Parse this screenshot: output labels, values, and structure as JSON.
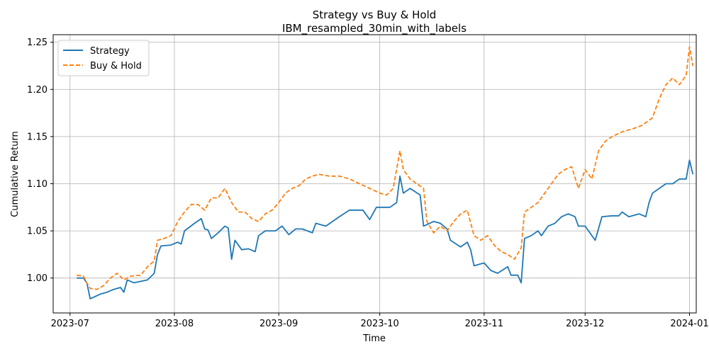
{
  "chart_data": {
    "type": "line",
    "title": "Strategy vs Buy & Hold",
    "subtitle": "IBM_resampled_30min_with_labels",
    "xlabel": "Time",
    "ylabel": "Cumulative Return",
    "x_range": [
      "2023-06-26",
      "2024-01-03"
    ],
    "ylim": [
      0.963,
      1.258
    ],
    "x_ticks": [
      "2023-07-01",
      "2023-08-01",
      "2023-09-01",
      "2023-10-01",
      "2023-11-01",
      "2023-12-01",
      "2024-01-01"
    ],
    "x_tick_labels": [
      "2023-07",
      "2023-08",
      "2023-09",
      "2023-10",
      "2023-11",
      "2023-12",
      "2024-01"
    ],
    "y_ticks": [
      1.0,
      1.05,
      1.1,
      1.15,
      1.2,
      1.25
    ],
    "y_tick_labels": [
      "1.00",
      "1.05",
      "1.10",
      "1.15",
      "1.20",
      "1.25"
    ],
    "grid": true,
    "legend_position": "top-left",
    "series": [
      {
        "name": "Strategy",
        "color": "#1f77b4",
        "style": "solid",
        "points": [
          [
            "2023-07-03",
            1.0
          ],
          [
            "2023-07-05",
            1.0
          ],
          [
            "2023-07-06",
            0.995
          ],
          [
            "2023-07-07",
            0.978
          ],
          [
            "2023-07-10",
            0.983
          ],
          [
            "2023-07-12",
            0.985
          ],
          [
            "2023-07-14",
            0.988
          ],
          [
            "2023-07-16",
            0.99
          ],
          [
            "2023-07-17",
            0.985
          ],
          [
            "2023-07-18",
            0.998
          ],
          [
            "2023-07-20",
            0.995
          ],
          [
            "2023-07-24",
            0.998
          ],
          [
            "2023-07-26",
            1.005
          ],
          [
            "2023-07-27",
            1.025
          ],
          [
            "2023-07-28",
            1.034
          ],
          [
            "2023-07-31",
            1.035
          ],
          [
            "2023-08-02",
            1.038
          ],
          [
            "2023-08-03",
            1.036
          ],
          [
            "2023-08-04",
            1.05
          ],
          [
            "2023-08-07",
            1.058
          ],
          [
            "2023-08-09",
            1.063
          ],
          [
            "2023-08-10",
            1.052
          ],
          [
            "2023-08-11",
            1.051
          ],
          [
            "2023-08-12",
            1.042
          ],
          [
            "2023-08-14",
            1.048
          ],
          [
            "2023-08-16",
            1.055
          ],
          [
            "2023-08-17",
            1.053
          ],
          [
            "2023-08-18",
            1.02
          ],
          [
            "2023-08-19",
            1.04
          ],
          [
            "2023-08-21",
            1.03
          ],
          [
            "2023-08-23",
            1.031
          ],
          [
            "2023-08-25",
            1.028
          ],
          [
            "2023-08-26",
            1.045
          ],
          [
            "2023-08-28",
            1.05
          ],
          [
            "2023-08-31",
            1.05
          ],
          [
            "2023-09-02",
            1.055
          ],
          [
            "2023-09-04",
            1.046
          ],
          [
            "2023-09-06",
            1.052
          ],
          [
            "2023-09-08",
            1.052
          ],
          [
            "2023-09-11",
            1.048
          ],
          [
            "2023-09-12",
            1.058
          ],
          [
            "2023-09-15",
            1.055
          ],
          [
            "2023-09-19",
            1.065
          ],
          [
            "2023-09-22",
            1.072
          ],
          [
            "2023-09-26",
            1.072
          ],
          [
            "2023-09-28",
            1.062
          ],
          [
            "2023-09-30",
            1.075
          ],
          [
            "2023-10-04",
            1.075
          ],
          [
            "2023-10-06",
            1.08
          ],
          [
            "2023-10-07",
            1.108
          ],
          [
            "2023-10-08",
            1.09
          ],
          [
            "2023-10-10",
            1.095
          ],
          [
            "2023-10-13",
            1.088
          ],
          [
            "2023-10-14",
            1.055
          ],
          [
            "2023-10-17",
            1.06
          ],
          [
            "2023-10-19",
            1.058
          ],
          [
            "2023-10-21",
            1.052
          ],
          [
            "2023-10-22",
            1.04
          ],
          [
            "2023-10-25",
            1.033
          ],
          [
            "2023-10-27",
            1.038
          ],
          [
            "2023-10-28",
            1.03
          ],
          [
            "2023-10-29",
            1.013
          ],
          [
            "2023-11-01",
            1.016
          ],
          [
            "2023-11-03",
            1.008
          ],
          [
            "2023-11-05",
            1.005
          ],
          [
            "2023-11-08",
            1.012
          ],
          [
            "2023-11-09",
            1.003
          ],
          [
            "2023-11-11",
            1.003
          ],
          [
            "2023-11-12",
            0.995
          ],
          [
            "2023-11-13",
            1.042
          ],
          [
            "2023-11-15",
            1.045
          ],
          [
            "2023-11-17",
            1.05
          ],
          [
            "2023-11-18",
            1.045
          ],
          [
            "2023-11-20",
            1.055
          ],
          [
            "2023-11-22",
            1.058
          ],
          [
            "2023-11-24",
            1.065
          ],
          [
            "2023-11-26",
            1.068
          ],
          [
            "2023-11-28",
            1.065
          ],
          [
            "2023-11-29",
            1.055
          ],
          [
            "2023-11-31",
            1.055
          ],
          [
            "2023-12-04",
            1.04
          ],
          [
            "2023-12-06",
            1.065
          ],
          [
            "2023-12-09",
            1.066
          ],
          [
            "2023-12-11",
            1.066
          ],
          [
            "2023-12-12",
            1.07
          ],
          [
            "2023-12-14",
            1.065
          ],
          [
            "2023-12-17",
            1.068
          ],
          [
            "2023-12-19",
            1.065
          ],
          [
            "2023-12-20",
            1.08
          ],
          [
            "2023-12-21",
            1.09
          ],
          [
            "2023-12-23",
            1.095
          ],
          [
            "2023-12-25",
            1.1
          ],
          [
            "2023-12-27",
            1.1
          ],
          [
            "2023-12-29",
            1.105
          ],
          [
            "2023-12-31",
            1.105
          ],
          [
            "2024-01-01",
            1.125
          ],
          [
            "2024-01-02",
            1.11
          ]
        ]
      },
      {
        "name": "Buy & Hold",
        "color": "#ff7f0e",
        "style": "dashed",
        "points": [
          [
            "2023-07-03",
            1.003
          ],
          [
            "2023-07-05",
            1.002
          ],
          [
            "2023-07-06",
            0.995
          ],
          [
            "2023-07-07",
            0.989
          ],
          [
            "2023-07-09",
            0.988
          ],
          [
            "2023-07-11",
            0.992
          ],
          [
            "2023-07-13",
            1.0
          ],
          [
            "2023-07-15",
            1.005
          ],
          [
            "2023-07-17",
            0.998
          ],
          [
            "2023-07-19",
            1.002
          ],
          [
            "2023-07-22",
            1.003
          ],
          [
            "2023-07-24",
            1.012
          ],
          [
            "2023-07-26",
            1.018
          ],
          [
            "2023-07-27",
            1.04
          ],
          [
            "2023-07-29",
            1.042
          ],
          [
            "2023-07-31",
            1.045
          ],
          [
            "2023-08-02",
            1.06
          ],
          [
            "2023-08-04",
            1.07
          ],
          [
            "2023-08-06",
            1.078
          ],
          [
            "2023-08-08",
            1.078
          ],
          [
            "2023-08-10",
            1.072
          ],
          [
            "2023-08-12",
            1.085
          ],
          [
            "2023-08-14",
            1.085
          ],
          [
            "2023-08-16",
            1.095
          ],
          [
            "2023-08-18",
            1.08
          ],
          [
            "2023-08-20",
            1.07
          ],
          [
            "2023-08-22",
            1.07
          ],
          [
            "2023-08-24",
            1.063
          ],
          [
            "2023-08-26",
            1.06
          ],
          [
            "2023-08-28",
            1.068
          ],
          [
            "2023-08-30",
            1.072
          ],
          [
            "2023-09-01",
            1.08
          ],
          [
            "2023-09-03",
            1.09
          ],
          [
            "2023-09-05",
            1.095
          ],
          [
            "2023-09-07",
            1.098
          ],
          [
            "2023-09-09",
            1.105
          ],
          [
            "2023-09-11",
            1.108
          ],
          [
            "2023-09-13",
            1.11
          ],
          [
            "2023-09-16",
            1.108
          ],
          [
            "2023-09-19",
            1.108
          ],
          [
            "2023-09-22",
            1.105
          ],
          [
            "2023-09-25",
            1.1
          ],
          [
            "2023-09-28",
            1.095
          ],
          [
            "2023-10-01",
            1.09
          ],
          [
            "2023-10-03",
            1.088
          ],
          [
            "2023-10-05",
            1.095
          ],
          [
            "2023-10-07",
            1.135
          ],
          [
            "2023-10-08",
            1.115
          ],
          [
            "2023-10-10",
            1.105
          ],
          [
            "2023-10-12",
            1.1
          ],
          [
            "2023-10-14",
            1.095
          ],
          [
            "2023-10-15",
            1.06
          ],
          [
            "2023-10-17",
            1.048
          ],
          [
            "2023-10-19",
            1.055
          ],
          [
            "2023-10-21",
            1.05
          ],
          [
            "2023-10-23",
            1.06
          ],
          [
            "2023-10-25",
            1.068
          ],
          [
            "2023-10-27",
            1.072
          ],
          [
            "2023-10-29",
            1.045
          ],
          [
            "2023-10-31",
            1.04
          ],
          [
            "2023-11-02",
            1.045
          ],
          [
            "2023-11-04",
            1.035
          ],
          [
            "2023-11-06",
            1.028
          ],
          [
            "2023-11-08",
            1.025
          ],
          [
            "2023-11-10",
            1.02
          ],
          [
            "2023-11-12",
            1.032
          ],
          [
            "2023-11-13",
            1.07
          ],
          [
            "2023-11-15",
            1.075
          ],
          [
            "2023-11-17",
            1.08
          ],
          [
            "2023-11-19",
            1.09
          ],
          [
            "2023-11-21",
            1.1
          ],
          [
            "2023-11-23",
            1.11
          ],
          [
            "2023-11-25",
            1.115
          ],
          [
            "2023-11-27",
            1.118
          ],
          [
            "2023-11-29",
            1.095
          ],
          [
            "2023-11-31",
            1.115
          ],
          [
            "2023-12-03",
            1.105
          ],
          [
            "2023-12-05",
            1.135
          ],
          [
            "2023-12-07",
            1.145
          ],
          [
            "2023-12-09",
            1.15
          ],
          [
            "2023-12-12",
            1.155
          ],
          [
            "2023-12-15",
            1.158
          ],
          [
            "2023-12-18",
            1.162
          ],
          [
            "2023-12-21",
            1.17
          ],
          [
            "2023-12-23",
            1.19
          ],
          [
            "2023-12-25",
            1.205
          ],
          [
            "2023-12-27",
            1.212
          ],
          [
            "2023-12-29",
            1.205
          ],
          [
            "2023-12-31",
            1.215
          ],
          [
            "2024-01-01",
            1.245
          ],
          [
            "2024-01-02",
            1.225
          ]
        ]
      }
    ]
  }
}
